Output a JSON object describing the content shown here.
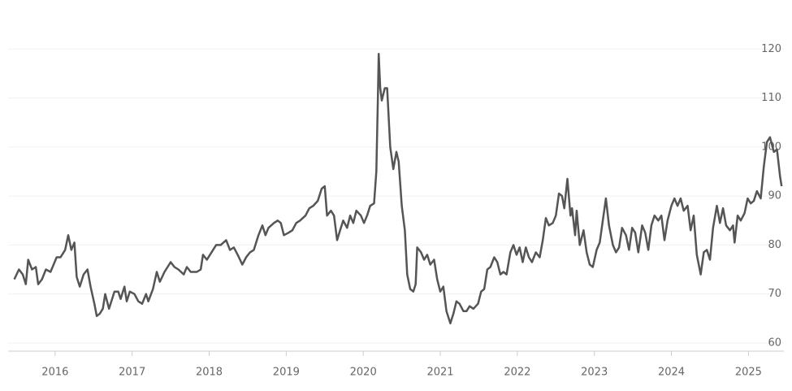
{
  "chart_data": {
    "type": "line",
    "color": "#555555",
    "grid": true,
    "xlim": [
      2015.39,
      2025.46
    ],
    "xticks": [
      2016,
      2017,
      2018,
      2019,
      2020,
      2021,
      2022,
      2023,
      2024,
      2025
    ],
    "ylim": [
      58,
      130
    ],
    "yticks": [
      60,
      70,
      80,
      90,
      100,
      110,
      120
    ],
    "x": [
      2015.47,
      2015.53,
      2015.58,
      2015.62,
      2015.65,
      2015.7,
      2015.75,
      2015.78,
      2015.83,
      2015.88,
      2015.94,
      2015.98,
      2016.02,
      2016.07,
      2016.13,
      2016.17,
      2016.21,
      2016.25,
      2016.28,
      2016.32,
      2016.37,
      2016.42,
      2016.46,
      2016.51,
      2016.54,
      2016.58,
      2016.62,
      2016.65,
      2016.7,
      2016.73,
      2016.77,
      2016.82,
      2016.85,
      2016.9,
      2016.93,
      2016.97,
      2017.03,
      2017.08,
      2017.13,
      2017.18,
      2017.21,
      2017.27,
      2017.32,
      2017.36,
      2017.42,
      2017.5,
      2017.55,
      2017.6,
      2017.67,
      2017.71,
      2017.76,
      2017.84,
      2017.89,
      2017.92,
      2017.97,
      2018.03,
      2018.09,
      2018.15,
      2018.22,
      2018.27,
      2018.32,
      2018.37,
      2018.43,
      2018.48,
      2018.53,
      2018.58,
      2018.64,
      2018.69,
      2018.73,
      2018.77,
      2018.84,
      2018.89,
      2018.93,
      2018.97,
      2019.03,
      2019.08,
      2019.13,
      2019.18,
      2019.25,
      2019.3,
      2019.35,
      2019.41,
      2019.46,
      2019.5,
      2019.53,
      2019.58,
      2019.62,
      2019.66,
      2019.7,
      2019.74,
      2019.79,
      2019.83,
      2019.87,
      2019.91,
      2019.97,
      2020.01,
      2020.05,
      2020.09,
      2020.14,
      2020.17,
      2020.19,
      2020.2,
      2020.22,
      2020.24,
      2020.28,
      2020.31,
      2020.35,
      2020.39,
      2020.43,
      2020.46,
      2020.5,
      2020.54,
      2020.57,
      2020.61,
      2020.65,
      2020.68,
      2020.7,
      2020.75,
      2020.79,
      2020.83,
      2020.87,
      2020.92,
      2020.96,
      2021.0,
      2021.04,
      2021.08,
      2021.13,
      2021.17,
      2021.21,
      2021.25,
      2021.3,
      2021.34,
      2021.38,
      2021.43,
      2021.49,
      2021.53,
      2021.57,
      2021.61,
      2021.65,
      2021.7,
      2021.74,
      2021.78,
      2021.82,
      2021.86,
      2021.91,
      2021.95,
      2021.99,
      2022.03,
      2022.07,
      2022.11,
      2022.15,
      2022.19,
      2022.24,
      2022.29,
      2022.33,
      2022.37,
      2022.41,
      2022.46,
      2022.5,
      2022.54,
      2022.58,
      2022.61,
      2022.65,
      2022.69,
      2022.71,
      2022.75,
      2022.77,
      2022.81,
      2022.86,
      2022.9,
      2022.94,
      2022.98,
      2023.03,
      2023.07,
      2023.11,
      2023.15,
      2023.19,
      2023.24,
      2023.28,
      2023.32,
      2023.36,
      2023.41,
      2023.45,
      2023.49,
      2023.53,
      2023.57,
      2023.62,
      2023.66,
      2023.7,
      2023.74,
      2023.78,
      2023.83,
      2023.87,
      2023.91,
      2023.95,
      2024.0,
      2024.04,
      2024.08,
      2024.12,
      2024.16,
      2024.21,
      2024.25,
      2024.29,
      2024.33,
      2024.38,
      2024.42,
      2024.46,
      2024.5,
      2024.54,
      2024.59,
      2024.63,
      2024.67,
      2024.71,
      2024.76,
      2024.8,
      2024.82,
      2024.86,
      2024.9,
      2024.95,
      2024.99,
      2025.03,
      2025.07,
      2025.11,
      2025.16,
      2025.2,
      2025.24,
      2025.28,
      2025.33,
      2025.37,
      2025.41,
      2025.43
    ],
    "values": [
      73,
      75,
      74,
      72,
      77,
      75,
      75.5,
      72,
      73,
      75,
      74.5,
      76,
      77.5,
      77.5,
      79,
      82,
      79,
      80.5,
      73.5,
      71.5,
      74,
      75,
      71.5,
      68,
      65.5,
      66,
      67,
      70,
      67,
      68.5,
      70.5,
      70.5,
      69,
      71.5,
      68.5,
      70.5,
      70,
      68.5,
      68,
      70,
      68.5,
      71,
      74.5,
      72.5,
      74.5,
      76.5,
      75.5,
      75,
      74,
      75.5,
      74.5,
      74.5,
      75,
      78,
      77,
      78.5,
      80,
      80,
      81,
      79,
      79.5,
      78,
      76,
      77.5,
      78.5,
      79,
      82,
      84,
      82,
      83.5,
      84.5,
      85,
      84.5,
      82,
      82.5,
      83,
      84.5,
      85,
      86,
      87.5,
      88,
      89,
      91.5,
      92,
      86,
      87,
      86,
      81,
      83,
      85,
      83.5,
      86,
      84.5,
      87,
      86,
      84.5,
      86,
      88,
      88.5,
      95,
      110,
      119,
      112,
      109.5,
      112,
      112,
      100,
      95.5,
      99,
      97,
      88,
      83,
      74,
      71,
      70.5,
      72,
      79.5,
      78.5,
      77,
      78,
      76,
      77,
      73,
      70.5,
      71.5,
      66.5,
      64,
      66,
      68.5,
      68,
      66.5,
      66.5,
      67.5,
      67,
      68,
      70.5,
      71,
      75,
      75.5,
      77.5,
      76.5,
      74,
      74.5,
      74,
      78.5,
      80,
      78,
      79.5,
      76.5,
      79.5,
      77.5,
      76.5,
      78.5,
      77.5,
      81,
      85.5,
      84,
      84.5,
      86,
      90.5,
      90,
      87.5,
      93.5,
      86,
      87.5,
      82,
      87,
      80,
      83,
      78.5,
      76,
      75.5,
      79,
      80.5,
      85,
      89.5,
      84,
      80,
      78.5,
      79.5,
      83.5,
      82,
      79,
      83.5,
      82.5,
      78.5,
      84,
      82.5,
      79,
      84,
      86,
      85,
      86,
      81,
      85,
      88,
      89.5,
      88,
      89.5,
      87,
      88,
      83,
      86,
      78,
      74,
      78.5,
      79,
      77,
      83.5,
      88,
      84.5,
      87.5,
      84,
      83,
      84,
      80.5,
      86,
      85,
      86.5,
      89.5,
      88.5,
      89,
      91,
      89.5,
      96,
      101,
      102,
      99,
      99.5,
      94,
      92
    ]
  }
}
